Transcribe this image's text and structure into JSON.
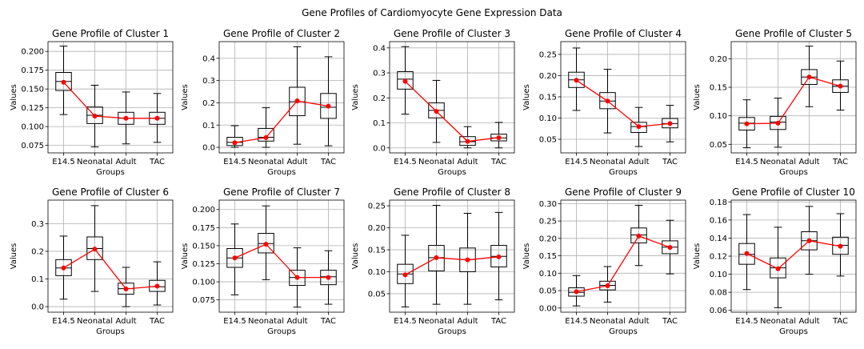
{
  "figure": {
    "title": "Gene Profiles of Cardiomyocyte Gene Expression Data",
    "colors": {
      "background": "#ffffff",
      "grid": "#b0b0b0",
      "box": "#000000",
      "mean_line": "#ff0000",
      "mean_marker": "#ff0000"
    }
  },
  "chart_data": [
    {
      "type": "box",
      "title": "Gene Profile of Cluster 1",
      "xlabel": "Groups",
      "ylabel": "Values",
      "categories": [
        "E14.5",
        "Neonatal",
        "Adult",
        "TAC"
      ],
      "ylim": [
        0.065,
        0.213
      ],
      "yticks": [
        0.075,
        0.1,
        0.125,
        0.15,
        0.175,
        0.2
      ],
      "ytick_labels": [
        "0.075",
        "0.100",
        "0.125",
        "0.150",
        "0.175",
        "0.200"
      ],
      "boxes": [
        {
          "whislo": 0.116,
          "q1": 0.148,
          "med": 0.16,
          "q3": 0.172,
          "whishi": 0.207
        },
        {
          "whislo": 0.073,
          "q1": 0.104,
          "med": 0.115,
          "q3": 0.126,
          "whishi": 0.155
        },
        {
          "whislo": 0.077,
          "q1": 0.103,
          "med": 0.111,
          "q3": 0.119,
          "whishi": 0.146
        },
        {
          "whislo": 0.079,
          "q1": 0.103,
          "med": 0.111,
          "q3": 0.119,
          "whishi": 0.144
        }
      ],
      "means": [
        0.159,
        0.114,
        0.111,
        0.111
      ],
      "grid": true
    },
    {
      "type": "box",
      "title": "Gene Profile of Cluster 2",
      "xlabel": "Groups",
      "ylabel": "Values",
      "categories": [
        "E14.5",
        "Neonatal",
        "Adult",
        "TAC"
      ],
      "ylim": [
        -0.025,
        0.475
      ],
      "yticks": [
        0.0,
        0.1,
        0.2,
        0.3,
        0.4
      ],
      "ytick_labels": [
        "0.0",
        "0.1",
        "0.2",
        "0.3",
        "0.4"
      ],
      "boxes": [
        {
          "whislo": 0.0,
          "q1": 0.008,
          "med": 0.022,
          "q3": 0.045,
          "whishi": 0.097
        },
        {
          "whislo": 0.0,
          "q1": 0.028,
          "med": 0.045,
          "q3": 0.085,
          "whishi": 0.178
        },
        {
          "whislo": 0.014,
          "q1": 0.142,
          "med": 0.205,
          "q3": 0.27,
          "whishi": 0.452
        },
        {
          "whislo": 0.007,
          "q1": 0.13,
          "med": 0.18,
          "q3": 0.242,
          "whishi": 0.407
        }
      ],
      "means": [
        0.021,
        0.044,
        0.209,
        0.185
      ],
      "grid": true
    },
    {
      "type": "box",
      "title": "Gene Profile of Cluster 3",
      "xlabel": "Groups",
      "ylabel": "Values",
      "categories": [
        "E14.5",
        "Neonatal",
        "Adult",
        "TAC"
      ],
      "ylim": [
        -0.02,
        0.425
      ],
      "yticks": [
        0.0,
        0.1,
        0.2,
        0.3,
        0.4
      ],
      "ytick_labels": [
        "0.0",
        "0.1",
        "0.2",
        "0.3",
        "0.4"
      ],
      "boxes": [
        {
          "whislo": 0.135,
          "q1": 0.235,
          "med": 0.275,
          "q3": 0.305,
          "whishi": 0.405
        },
        {
          "whislo": 0.022,
          "q1": 0.12,
          "med": 0.15,
          "q3": 0.18,
          "whishi": 0.27
        },
        {
          "whislo": 0.0,
          "q1": 0.01,
          "med": 0.025,
          "q3": 0.045,
          "whishi": 0.085
        },
        {
          "whislo": 0.0,
          "q1": 0.028,
          "med": 0.04,
          "q3": 0.055,
          "whishi": 0.102
        }
      ],
      "means": [
        0.266,
        0.146,
        0.026,
        0.041
      ],
      "grid": true
    },
    {
      "type": "box",
      "title": "Gene Profile of Cluster 4",
      "xlabel": "Groups",
      "ylabel": "Values",
      "categories": [
        "E14.5",
        "Neonatal",
        "Adult",
        "TAC"
      ],
      "ylim": [
        0.018,
        0.28
      ],
      "yticks": [
        0.05,
        0.1,
        0.15,
        0.2,
        0.25
      ],
      "ytick_labels": [
        "0.05",
        "0.10",
        "0.15",
        "0.20",
        "0.25"
      ],
      "boxes": [
        {
          "whislo": 0.118,
          "q1": 0.172,
          "med": 0.19,
          "q3": 0.208,
          "whishi": 0.265
        },
        {
          "whislo": 0.065,
          "q1": 0.122,
          "med": 0.14,
          "q3": 0.16,
          "whishi": 0.215
        },
        {
          "whislo": 0.033,
          "q1": 0.066,
          "med": 0.08,
          "q3": 0.09,
          "whishi": 0.125
        },
        {
          "whislo": 0.044,
          "q1": 0.077,
          "med": 0.087,
          "q3": 0.099,
          "whishi": 0.13
        }
      ],
      "means": [
        0.189,
        0.14,
        0.08,
        0.087
      ],
      "grid": true
    },
    {
      "type": "box",
      "title": "Gene Profile of Cluster 5",
      "xlabel": "Groups",
      "ylabel": "Values",
      "categories": [
        "E14.5",
        "Neonatal",
        "Adult",
        "TAC"
      ],
      "ylim": [
        0.035,
        0.23
      ],
      "yticks": [
        0.05,
        0.1,
        0.15,
        0.2
      ],
      "ytick_labels": [
        "0.05",
        "0.10",
        "0.15",
        "0.20"
      ],
      "boxes": [
        {
          "whislo": 0.044,
          "q1": 0.075,
          "med": 0.087,
          "q3": 0.097,
          "whishi": 0.128
        },
        {
          "whislo": 0.045,
          "q1": 0.076,
          "med": 0.089,
          "q3": 0.099,
          "whishi": 0.131
        },
        {
          "whislo": 0.116,
          "q1": 0.155,
          "med": 0.168,
          "q3": 0.181,
          "whishi": 0.222
        },
        {
          "whislo": 0.11,
          "q1": 0.141,
          "med": 0.152,
          "q3": 0.163,
          "whishi": 0.196
        }
      ],
      "means": [
        0.086,
        0.087,
        0.168,
        0.152
      ],
      "grid": true
    },
    {
      "type": "box",
      "title": "Gene Profile of Cluster 6",
      "xlabel": "Groups",
      "ylabel": "Values",
      "categories": [
        "E14.5",
        "Neonatal",
        "Adult",
        "TAC"
      ],
      "ylim": [
        -0.02,
        0.385
      ],
      "yticks": [
        0.0,
        0.1,
        0.2,
        0.3
      ],
      "ytick_labels": [
        "0.0",
        "0.1",
        "0.2",
        "0.3"
      ],
      "boxes": [
        {
          "whislo": 0.027,
          "q1": 0.112,
          "med": 0.14,
          "q3": 0.17,
          "whishi": 0.255
        },
        {
          "whislo": 0.055,
          "q1": 0.17,
          "med": 0.21,
          "q3": 0.252,
          "whishi": 0.365
        },
        {
          "whislo": 0.0,
          "q1": 0.045,
          "med": 0.065,
          "q3": 0.085,
          "whishi": 0.142
        },
        {
          "whislo": 0.006,
          "q1": 0.055,
          "med": 0.072,
          "q3": 0.095,
          "whishi": 0.162
        }
      ],
      "means": [
        0.14,
        0.208,
        0.064,
        0.074
      ],
      "grid": true
    },
    {
      "type": "box",
      "title": "Gene Profile of Cluster 7",
      "xlabel": "Groups",
      "ylabel": "Values",
      "categories": [
        "E14.5",
        "Neonatal",
        "Adult",
        "TAC"
      ],
      "ylim": [
        0.058,
        0.213
      ],
      "yticks": [
        0.075,
        0.1,
        0.125,
        0.15,
        0.175,
        0.2
      ],
      "ytick_labels": [
        "0.075",
        "0.100",
        "0.125",
        "0.150",
        "0.175",
        "0.200"
      ],
      "boxes": [
        {
          "whislo": 0.082,
          "q1": 0.12,
          "med": 0.133,
          "q3": 0.146,
          "whishi": 0.18
        },
        {
          "whislo": 0.103,
          "q1": 0.14,
          "med": 0.153,
          "q3": 0.167,
          "whishi": 0.205
        },
        {
          "whislo": 0.065,
          "q1": 0.095,
          "med": 0.106,
          "q3": 0.116,
          "whishi": 0.147
        },
        {
          "whislo": 0.069,
          "q1": 0.096,
          "med": 0.107,
          "q3": 0.116,
          "whishi": 0.143
        }
      ],
      "means": [
        0.133,
        0.152,
        0.106,
        0.106
      ],
      "grid": true
    },
    {
      "type": "box",
      "title": "Gene Profile of Cluster 8",
      "xlabel": "Groups",
      "ylabel": "Values",
      "categories": [
        "E14.5",
        "Neonatal",
        "Adult",
        "TAC"
      ],
      "ylim": [
        0.008,
        0.263
      ],
      "yticks": [
        0.05,
        0.1,
        0.15,
        0.2,
        0.25
      ],
      "ytick_labels": [
        "0.05",
        "0.10",
        "0.15",
        "0.20",
        "0.25"
      ],
      "boxes": [
        {
          "whislo": 0.02,
          "q1": 0.073,
          "med": 0.095,
          "q3": 0.117,
          "whishi": 0.183
        },
        {
          "whislo": 0.026,
          "q1": 0.102,
          "med": 0.132,
          "q3": 0.16,
          "whishi": 0.251
        },
        {
          "whislo": 0.026,
          "q1": 0.1,
          "med": 0.128,
          "q3": 0.154,
          "whishi": 0.233
        },
        {
          "whislo": 0.036,
          "q1": 0.111,
          "med": 0.135,
          "q3": 0.16,
          "whishi": 0.235
        }
      ],
      "means": [
        0.093,
        0.132,
        0.127,
        0.134
      ],
      "grid": true
    },
    {
      "type": "box",
      "title": "Gene Profile of Cluster 9",
      "xlabel": "Groups",
      "ylabel": "Values",
      "categories": [
        "E14.5",
        "Neonatal",
        "Adult",
        "TAC"
      ],
      "ylim": [
        -0.012,
        0.31
      ],
      "yticks": [
        0.0,
        0.05,
        0.1,
        0.15,
        0.2,
        0.25,
        0.3
      ],
      "ytick_labels": [
        "0.00",
        "0.05",
        "0.10",
        "0.15",
        "0.20",
        "0.25",
        "0.30"
      ],
      "boxes": [
        {
          "whislo": 0.006,
          "q1": 0.034,
          "med": 0.045,
          "q3": 0.058,
          "whishi": 0.093
        },
        {
          "whislo": 0.017,
          "q1": 0.052,
          "med": 0.065,
          "q3": 0.077,
          "whishi": 0.119
        },
        {
          "whislo": 0.122,
          "q1": 0.187,
          "med": 0.21,
          "q3": 0.23,
          "whishi": 0.295
        },
        {
          "whislo": 0.098,
          "q1": 0.156,
          "med": 0.175,
          "q3": 0.193,
          "whishi": 0.252
        }
      ],
      "means": [
        0.047,
        0.064,
        0.207,
        0.174
      ],
      "grid": true
    },
    {
      "type": "box",
      "title": "Gene Profile of Cluster 10",
      "xlabel": "Groups",
      "ylabel": "Values",
      "categories": [
        "E14.5",
        "Neonatal",
        "Adult",
        "TAC"
      ],
      "ylim": [
        0.058,
        0.182
      ],
      "yticks": [
        0.06,
        0.08,
        0.1,
        0.12,
        0.14,
        0.16,
        0.18
      ],
      "ytick_labels": [
        "0.06",
        "0.08",
        "0.10",
        "0.12",
        "0.14",
        "0.16",
        "0.18"
      ],
      "boxes": [
        {
          "whislo": 0.083,
          "q1": 0.111,
          "med": 0.122,
          "q3": 0.134,
          "whishi": 0.166
        },
        {
          "whislo": 0.063,
          "q1": 0.096,
          "med": 0.107,
          "q3": 0.118,
          "whishi": 0.152
        },
        {
          "whislo": 0.1,
          "q1": 0.127,
          "med": 0.137,
          "q3": 0.147,
          "whishi": 0.175
        },
        {
          "whislo": 0.098,
          "q1": 0.122,
          "med": 0.132,
          "q3": 0.141,
          "whishi": 0.167
        }
      ],
      "means": [
        0.123,
        0.106,
        0.137,
        0.131
      ],
      "grid": true
    }
  ]
}
